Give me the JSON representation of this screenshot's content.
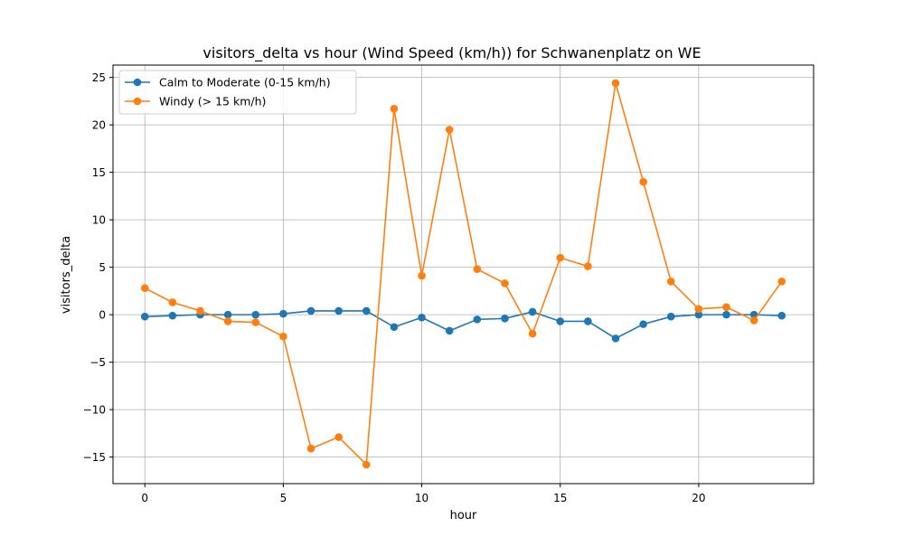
{
  "chart_data": {
    "type": "line",
    "title": "visitors_delta vs hour (Wind Speed (km/h)) for Schwanenplatz on WE",
    "xlabel": "hour",
    "ylabel": "visitors_delta",
    "xlim": [
      -1.15,
      24.15
    ],
    "ylim": [
      -17.8,
      26.3
    ],
    "xticks": [
      0,
      5,
      10,
      15,
      20
    ],
    "yticks": [
      -15,
      -10,
      -5,
      0,
      5,
      10,
      15,
      20,
      25
    ],
    "grid": true,
    "legend_position": "top-left",
    "x": [
      0,
      1,
      2,
      3,
      4,
      5,
      6,
      7,
      8,
      9,
      10,
      11,
      12,
      13,
      14,
      15,
      16,
      17,
      18,
      19,
      20,
      21,
      22,
      23
    ],
    "series": [
      {
        "name": "Calm to Moderate (0-15 km/h)",
        "color": "#1f77b4",
        "values": [
          -0.2,
          -0.1,
          0.0,
          0.0,
          0.0,
          0.1,
          0.4,
          0.4,
          0.4,
          -1.3,
          -0.3,
          -1.7,
          -0.5,
          -0.4,
          0.3,
          -0.7,
          -0.7,
          -2.5,
          -1.0,
          -0.2,
          0.0,
          0.0,
          0.0,
          -0.1
        ]
      },
      {
        "name": "Windy (> 15 km/h)",
        "color": "#ff7f0e",
        "values": [
          2.8,
          1.3,
          0.4,
          -0.7,
          -0.8,
          -2.3,
          -14.1,
          -12.9,
          -15.8,
          21.7,
          4.1,
          19.5,
          4.8,
          3.3,
          -2.0,
          6.0,
          5.1,
          24.4,
          14.0,
          3.5,
          0.6,
          0.8,
          -0.6,
          3.5
        ]
      }
    ]
  }
}
